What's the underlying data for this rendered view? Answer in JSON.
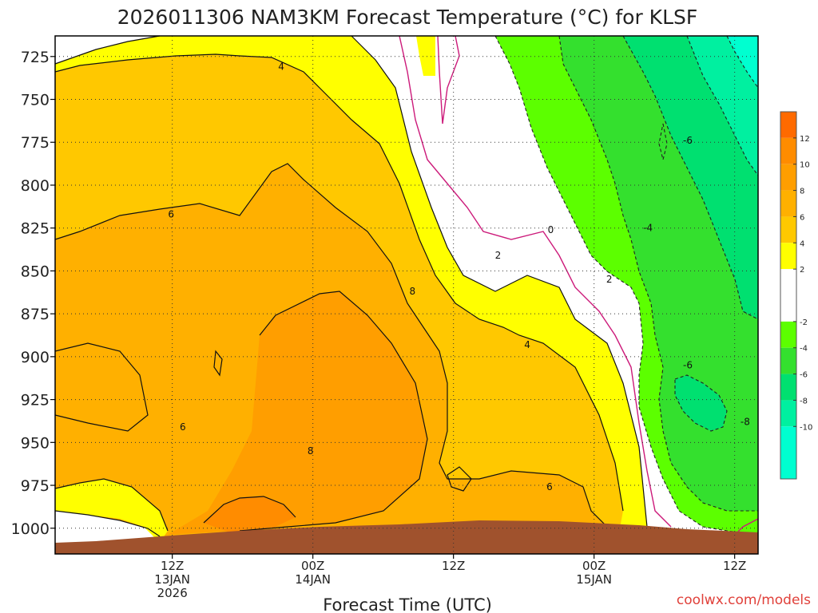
{
  "chart_data": {
    "type": "heatmap",
    "title": "2026011306 NAM3KM Forecast Temperature (°C) for KLSF",
    "xlabel": "Forecast Time (UTC)",
    "ylabel": "",
    "watermark": "coolwx.com/models",
    "x_range_hours": [
      -10,
      50
    ],
    "y_range_mb": [
      713,
      1015
    ],
    "y_ticks": [
      725,
      750,
      775,
      800,
      825,
      850,
      875,
      900,
      925,
      950,
      975,
      1000
    ],
    "x_ticks": [
      {
        "hour": 0,
        "lines": [
          "12Z",
          "13JAN",
          "2026"
        ]
      },
      {
        "hour": 12,
        "lines": [
          "00Z",
          "14JAN"
        ]
      },
      {
        "hour": 24,
        "lines": [
          "12Z"
        ]
      },
      {
        "hour": 36,
        "lines": [
          "00Z",
          "15JAN"
        ]
      },
      {
        "hour": 48,
        "lines": [
          "12Z"
        ]
      }
    ],
    "colorbar": {
      "labels": [
        "12",
        "10",
        "8",
        "6",
        "4",
        "2",
        "-2",
        "-4",
        "-6",
        "-8",
        "-10"
      ],
      "bands": [
        {
          "range": [
            12,
            14
          ],
          "color": "#ff6a00"
        },
        {
          "range": [
            10,
            12
          ],
          "color": "#ff8c00"
        },
        {
          "range": [
            8,
            10
          ],
          "color": "#ff9e00"
        },
        {
          "range": [
            6,
            8
          ],
          "color": "#ffb000"
        },
        {
          "range": [
            4,
            6
          ],
          "color": "#ffc800"
        },
        {
          "range": [
            2,
            4
          ],
          "color": "#ffff00"
        },
        {
          "range": [
            -2,
            2
          ],
          "color": "#ffffff"
        },
        {
          "range": [
            -4,
            -2
          ],
          "color": "#5cff00"
        },
        {
          "range": [
            -6,
            -4
          ],
          "color": "#34e02e"
        },
        {
          "range": [
            -8,
            -6
          ],
          "color": "#00e070"
        },
        {
          "range": [
            -10,
            -8
          ],
          "color": "#00f0a0"
        },
        {
          "range": [
            -14,
            -10
          ],
          "color": "#00ffd0"
        }
      ]
    },
    "terrain_color": "#a0522d",
    "contour_labels": [
      {
        "text": "4",
        "hour": 9.3,
        "mb": 731
      },
      {
        "text": "6",
        "hour": -0.1,
        "mb": 817
      },
      {
        "text": "8",
        "hour": 20.5,
        "mb": 862
      },
      {
        "text": "2",
        "hour": 27.8,
        "mb": 841
      },
      {
        "text": "0",
        "hour": 32.3,
        "mb": 826
      },
      {
        "text": "2",
        "hour": 37.3,
        "mb": 855
      },
      {
        "text": "4",
        "hour": 30.3,
        "mb": 893
      },
      {
        "text": "6",
        "hour": 0.9,
        "mb": 941
      },
      {
        "text": "8",
        "hour": 11.8,
        "mb": 955
      },
      {
        "text": "6",
        "hour": 32.2,
        "mb": 976
      },
      {
        "text": "-6",
        "hour": 44.0,
        "mb": 774
      },
      {
        "text": "-4",
        "hour": 40.6,
        "mb": 825
      },
      {
        "text": "-6",
        "hour": 44.0,
        "mb": 905
      },
      {
        "text": "-8",
        "hour": 48.9,
        "mb": 938
      }
    ]
  }
}
